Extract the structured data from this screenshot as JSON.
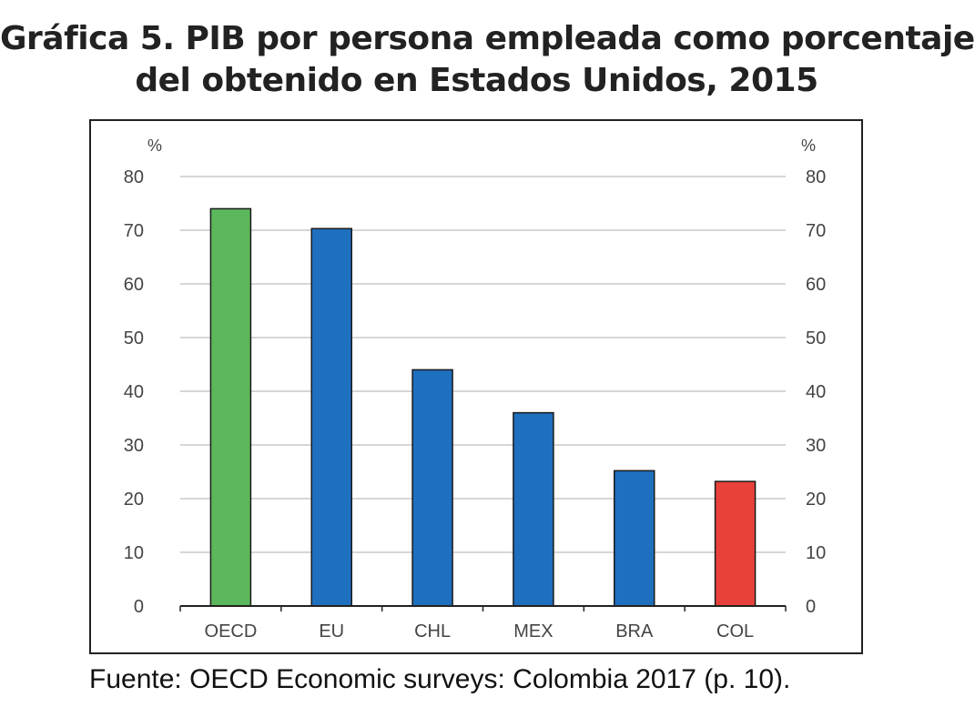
{
  "title_lines": [
    "Gráfica 5. PIB por persona empleada como porcentaje",
    "del obtenido en Estados Unidos, 2015"
  ],
  "source": "Fuente: OECD Economic surveys: Colombia 2017 (p. 10).",
  "chart_data": {
    "type": "bar",
    "title": "Gráfica 5. PIB por persona empleada como porcentaje del obtenido en Estados Unidos, 2015",
    "y_unit_left": "%",
    "y_unit_right": "%",
    "ylim": [
      0,
      80
    ],
    "yticks": [
      0,
      10,
      20,
      30,
      40,
      50,
      60,
      70,
      80
    ],
    "grid": true,
    "categories": [
      "OECD",
      "EU",
      "CHL",
      "MEX",
      "BRA",
      "COL"
    ],
    "values": [
      74,
      70.3,
      44,
      36,
      25.2,
      23.2
    ],
    "bar_colors": [
      "#5cb85c",
      "#1f6fbf",
      "#1f6fbf",
      "#1f6fbf",
      "#1f6fbf",
      "#e8413b"
    ]
  }
}
